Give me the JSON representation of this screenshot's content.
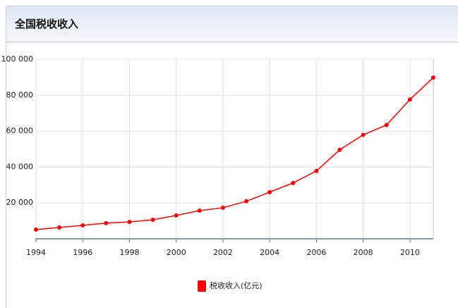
{
  "chart_data": {
    "type": "line",
    "title": "全国税收收入",
    "x": [
      1994,
      1995,
      1996,
      1997,
      1998,
      1999,
      2000,
      2001,
      2002,
      2003,
      2004,
      2005,
      2006,
      2007,
      2008,
      2009,
      2010,
      2011
    ],
    "series": [
      {
        "name": "税收收入(亿元)",
        "color": "#ff0000",
        "values": [
          5100,
          6300,
          7500,
          8700,
          9400,
          10600,
          13000,
          15700,
          17300,
          20900,
          26000,
          31100,
          37800,
          49600,
          57900,
          63400,
          77600,
          89800
        ]
      }
    ],
    "xlim": [
      1994,
      2011
    ],
    "xticks": [
      1994,
      1996,
      1998,
      2000,
      2002,
      2004,
      2006,
      2008,
      2010
    ],
    "ylim": [
      0,
      100000
    ],
    "yticks": [
      {
        "value": 20000,
        "label": "20 000"
      },
      {
        "value": 40000,
        "label": "40 000"
      },
      {
        "value": 60000,
        "label": "60 000"
      },
      {
        "value": 80000,
        "label": "80 000"
      },
      {
        "value": 100000,
        "label": "100 000"
      }
    ],
    "grid": true,
    "legend": "bottom"
  }
}
